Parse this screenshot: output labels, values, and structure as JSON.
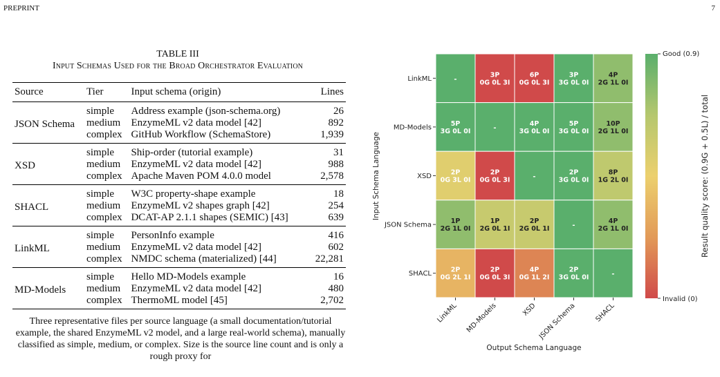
{
  "header": {
    "left": "PREPRINT",
    "page_number": "7"
  },
  "table": {
    "label": "TABLE III",
    "title": "Input Schemas Used for the Broad Orchestrator Evaluation",
    "columns": [
      "Source",
      "Tier",
      "Input schema (origin)",
      "Lines"
    ],
    "groups": [
      {
        "source": "JSON Schema",
        "rows": [
          {
            "tier": "simple",
            "schema": "Address example (json-schema.org)",
            "lines": "26"
          },
          {
            "tier": "medium",
            "schema": "EnzymeML v2 data model [42]",
            "lines": "892"
          },
          {
            "tier": "complex",
            "schema": "GitHub Workflow (SchemaStore)",
            "lines": "1,939"
          }
        ]
      },
      {
        "source": "XSD",
        "rows": [
          {
            "tier": "simple",
            "schema": "Ship-order (tutorial example)",
            "lines": "31"
          },
          {
            "tier": "medium",
            "schema": "EnzymeML v2 data model [42]",
            "lines": "988"
          },
          {
            "tier": "complex",
            "schema": "Apache Maven POM 4.0.0 model",
            "lines": "2,578"
          }
        ]
      },
      {
        "source": "SHACL",
        "rows": [
          {
            "tier": "simple",
            "schema": "W3C property-shape example",
            "lines": "18"
          },
          {
            "tier": "medium",
            "schema": "EnzymeML v2 shapes graph [42]",
            "lines": "254"
          },
          {
            "tier": "complex",
            "schema": "DCAT-AP 2.1.1 shapes (SEMIC) [43]",
            "lines": "639"
          }
        ]
      },
      {
        "source": "LinkML",
        "rows": [
          {
            "tier": "simple",
            "schema": "PersonInfo example",
            "lines": "416"
          },
          {
            "tier": "medium",
            "schema": "EnzymeML v2 data model [42]",
            "lines": "602"
          },
          {
            "tier": "complex",
            "schema": "NMDC schema (materialized) [44]",
            "lines": "22,281"
          }
        ]
      },
      {
        "source": "MD-Models",
        "rows": [
          {
            "tier": "simple",
            "schema": "Hello MD-Models example",
            "lines": "16"
          },
          {
            "tier": "medium",
            "schema": "EnzymeML v2 data model [42]",
            "lines": "480"
          },
          {
            "tier": "complex",
            "schema": "ThermoML model [45]",
            "lines": "2,702"
          }
        ]
      }
    ],
    "note": "Three representative files per source language (a small documentation/tutorial example, the shared EnzymeML v2 model, and a large real-world schema), manually classified as simple, medium, or complex. Size is the source line count and is only a rough proxy for"
  },
  "chart_data": {
    "type": "heatmap",
    "title": "",
    "xlabel": "Output Schema Language",
    "ylabel": "Input Schema Language",
    "x_categories": [
      "LinkML",
      "MD-Models",
      "XSD",
      "JSON Schema",
      "SHACL"
    ],
    "y_categories": [
      "LinkML",
      "MD-Models",
      "XSD",
      "JSON Schema",
      "SHACL"
    ],
    "colorbar": {
      "label": "Result quality score: (0.9G + 0.5L) / total",
      "top_label": "Good (0.9)",
      "bottom_label": "Invalid (0)",
      "min": 0,
      "max": 0.9,
      "colors": [
        "#d04a4a",
        "#e29a58",
        "#ecd06e",
        "#b5c76e",
        "#5aaf6c"
      ]
    },
    "cells": [
      [
        {
          "line1": "-",
          "line2": "",
          "score": 0.9
        },
        {
          "line1": "3P",
          "line2": "0G 0L 3I",
          "score": 0.0
        },
        {
          "line1": "6P",
          "line2": "0G 0L 3I",
          "score": 0.0
        },
        {
          "line1": "3P",
          "line2": "3G 0L 0I",
          "score": 0.9
        },
        {
          "line1": "4P",
          "line2": "2G 1L 0I",
          "score": 0.767
        }
      ],
      [
        {
          "line1": "5P",
          "line2": "3G 0L 0I",
          "score": 0.9
        },
        {
          "line1": "-",
          "line2": "",
          "score": 0.9
        },
        {
          "line1": "4P",
          "line2": "3G 0L 0I",
          "score": 0.9
        },
        {
          "line1": "5P",
          "line2": "3G 0L 0I",
          "score": 0.9
        },
        {
          "line1": "10P",
          "line2": "2G 1L 0I",
          "score": 0.767
        }
      ],
      [
        {
          "line1": "2P",
          "line2": "0G 3L 0I",
          "score": 0.5
        },
        {
          "line1": "2P",
          "line2": "0G 0L 3I",
          "score": 0.0
        },
        {
          "line1": "-",
          "line2": "",
          "score": 0.9
        },
        {
          "line1": "2P",
          "line2": "3G 0L 0I",
          "score": 0.9
        },
        {
          "line1": "8P",
          "line2": "1G 2L 0I",
          "score": 0.633
        }
      ],
      [
        {
          "line1": "1P",
          "line2": "2G 1L 0I",
          "score": 0.767
        },
        {
          "line1": "1P",
          "line2": "2G 0L 1I",
          "score": 0.6
        },
        {
          "line1": "2P",
          "line2": "2G 0L 1I",
          "score": 0.6
        },
        {
          "line1": "-",
          "line2": "",
          "score": 0.9
        },
        {
          "line1": "4P",
          "line2": "2G 1L 0I",
          "score": 0.767
        }
      ],
      [
        {
          "line1": "2P",
          "line2": "0G 2L 1I",
          "score": 0.333
        },
        {
          "line1": "2P",
          "line2": "0G 0L 3I",
          "score": 0.0
        },
        {
          "line1": "4P",
          "line2": "0G 1L 2I",
          "score": 0.167
        },
        {
          "line1": "2P",
          "line2": "3G 0L 0I",
          "score": 0.9
        },
        {
          "line1": "-",
          "line2": "",
          "score": 0.9
        }
      ]
    ]
  }
}
